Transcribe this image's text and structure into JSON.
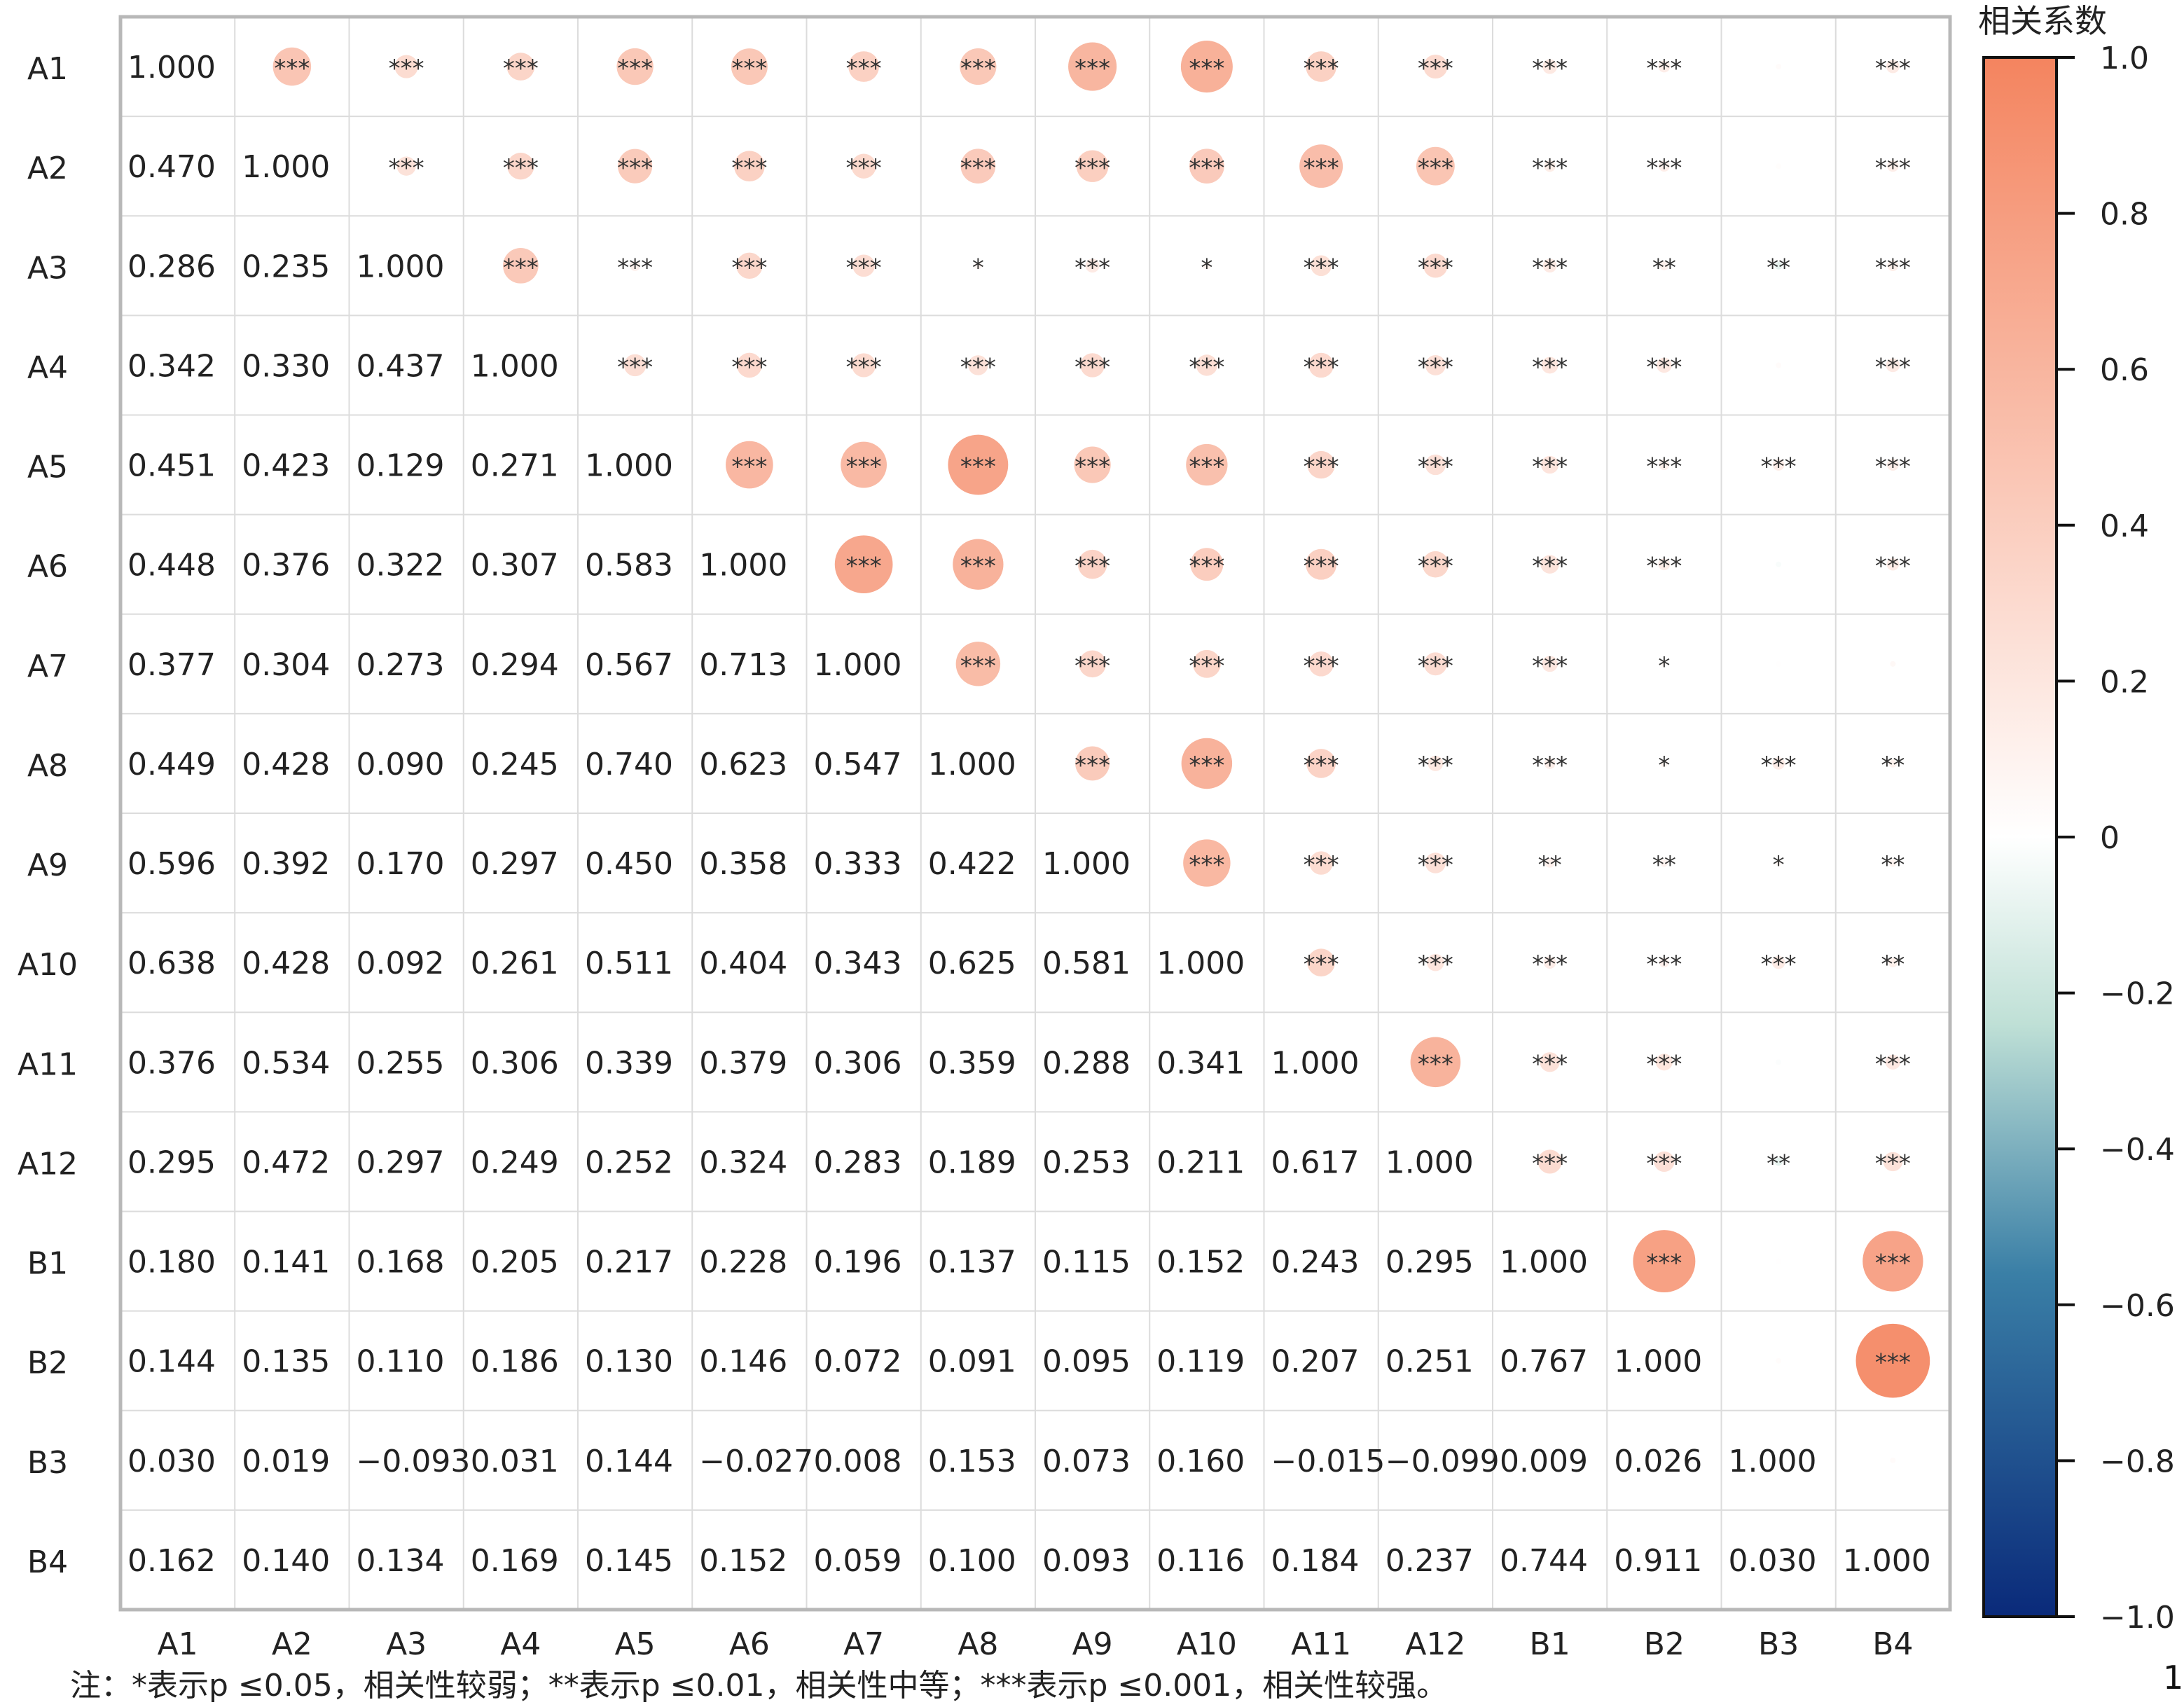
{
  "chart_data": {
    "type": "heatmap",
    "variables": [
      "A1",
      "A2",
      "A3",
      "A4",
      "A5",
      "A6",
      "A7",
      "A8",
      "A9",
      "A10",
      "A11",
      "A12",
      "B1",
      "B2",
      "B3",
      "B4"
    ],
    "lower_triangle_values": [
      [
        "1.000"
      ],
      [
        "0.470",
        "1.000"
      ],
      [
        "0.286",
        "0.235",
        "1.000"
      ],
      [
        "0.342",
        "0.330",
        "0.437",
        "1.000"
      ],
      [
        "0.451",
        "0.423",
        "0.129",
        "0.271",
        "1.000"
      ],
      [
        "0.448",
        "0.376",
        "0.322",
        "0.307",
        "0.583",
        "1.000"
      ],
      [
        "0.377",
        "0.304",
        "0.273",
        "0.294",
        "0.567",
        "0.713",
        "1.000"
      ],
      [
        "0.449",
        "0.428",
        "0.090",
        "0.245",
        "0.740",
        "0.623",
        "0.547",
        "1.000"
      ],
      [
        "0.596",
        "0.392",
        "0.170",
        "0.297",
        "0.450",
        "0.358",
        "0.333",
        "0.422",
        "1.000"
      ],
      [
        "0.638",
        "0.428",
        "0.092",
        "0.261",
        "0.511",
        "0.404",
        "0.343",
        "0.625",
        "0.581",
        "1.000"
      ],
      [
        "0.376",
        "0.534",
        "0.255",
        "0.306",
        "0.339",
        "0.379",
        "0.306",
        "0.359",
        "0.288",
        "0.341",
        "1.000"
      ],
      [
        "0.295",
        "0.472",
        "0.297",
        "0.249",
        "0.252",
        "0.324",
        "0.283",
        "0.189",
        "0.253",
        "0.211",
        "0.617",
        "1.000"
      ],
      [
        "0.180",
        "0.141",
        "0.168",
        "0.205",
        "0.217",
        "0.228",
        "0.196",
        "0.137",
        "0.115",
        "0.152",
        "0.243",
        "0.295",
        "1.000"
      ],
      [
        "0.144",
        "0.135",
        "0.110",
        "0.186",
        "0.130",
        "0.146",
        "0.072",
        "0.091",
        "0.095",
        "0.119",
        "0.207",
        "0.251",
        "0.767",
        "1.000"
      ],
      [
        "0.030",
        "0.019",
        "−0.093",
        "0.031",
        "0.144",
        "−0.027",
        "0.008",
        "0.153",
        "0.073",
        "0.160",
        "−0.015",
        "−0.099",
        "0.009",
        "0.026",
        "1.000"
      ],
      [
        "0.162",
        "0.140",
        "0.134",
        "0.169",
        "0.145",
        "0.152",
        "0.059",
        "0.100",
        "0.093",
        "0.116",
        "0.184",
        "0.237",
        "0.744",
        "0.911",
        "0.030",
        "1.000"
      ]
    ],
    "upper_triangle_significance": [
      [
        "",
        "***",
        "***",
        "***",
        "***",
        "***",
        "***",
        "***",
        "***",
        "***",
        "***",
        "***",
        "***",
        "***",
        "",
        "***"
      ],
      [
        "",
        "",
        "***",
        "***",
        "***",
        "***",
        "***",
        "***",
        "***",
        "***",
        "***",
        "***",
        "***",
        "***",
        "",
        "***"
      ],
      [
        "",
        "",
        "",
        "***",
        "***",
        "***",
        "***",
        "*",
        "***",
        "*",
        "***",
        "***",
        "***",
        "**",
        "**",
        "***"
      ],
      [
        "",
        "",
        "",
        "",
        "***",
        "***",
        "***",
        "***",
        "***",
        "***",
        "***",
        "***",
        "***",
        "***",
        "",
        "***"
      ],
      [
        "",
        "",
        "",
        "",
        "",
        "***",
        "***",
        "***",
        "***",
        "***",
        "***",
        "***",
        "***",
        "***",
        "***",
        "***"
      ],
      [
        "",
        "",
        "",
        "",
        "",
        "",
        "***",
        "***",
        "***",
        "***",
        "***",
        "***",
        "***",
        "***",
        "",
        "***"
      ],
      [
        "",
        "",
        "",
        "",
        "",
        "",
        "",
        "***",
        "***",
        "***",
        "***",
        "***",
        "***",
        "*",
        "",
        ""
      ],
      [
        "",
        "",
        "",
        "",
        "",
        "",
        "",
        "",
        "***",
        "***",
        "***",
        "***",
        "***",
        "*",
        "***",
        "**"
      ],
      [
        "",
        "",
        "",
        "",
        "",
        "",
        "",
        "",
        "",
        "***",
        "***",
        "***",
        "**",
        "**",
        "*",
        "**"
      ],
      [
        "",
        "",
        "",
        "",
        "",
        "",
        "",
        "",
        "",
        "",
        "***",
        "***",
        "***",
        "***",
        "***",
        "**"
      ],
      [
        "",
        "",
        "",
        "",
        "",
        "",
        "",
        "",
        "",
        "",
        "",
        "***",
        "***",
        "***",
        "",
        "***"
      ],
      [
        "",
        "",
        "",
        "",
        "",
        "",
        "",
        "",
        "",
        "",
        "",
        "",
        "***",
        "***",
        "**",
        "***"
      ],
      [
        "",
        "",
        "",
        "",
        "",
        "",
        "",
        "",
        "",
        "",
        "",
        "",
        "",
        "***",
        "",
        "***"
      ],
      [
        "",
        "",
        "",
        "",
        "",
        "",
        "",
        "",
        "",
        "",
        "",
        "",
        "",
        "",
        "",
        "***"
      ],
      [
        "",
        "",
        "",
        "",
        "",
        "",
        "",
        "",
        "",
        "",
        "",
        "",
        "",
        "",
        "",
        ""
      ],
      [
        "",
        "",
        "",
        "",
        "",
        "",
        "",
        "",
        "",
        "",
        "",
        "",
        "",
        "",
        "",
        ""
      ]
    ],
    "colorbar": {
      "title": "相关系数",
      "range": [
        -1.0,
        1.0
      ],
      "ticks": [
        1.0,
        0.8,
        0.6,
        0.4,
        0.2,
        0,
        -0.2,
        -0.4,
        -0.6,
        -0.8,
        -1.0
      ],
      "tick_labels": [
        "1.0",
        "0.8",
        "0.6",
        "0.4",
        "0.2",
        "0",
        "−0.2",
        "−0.4",
        "−0.6",
        "−0.8",
        "−1.0"
      ],
      "color_high": "#f4845f",
      "color_mid": "#ffffff",
      "color_low_1": "#bfe0d6",
      "color_low_2": "#3a7fa6",
      "color_low": "#0a2a7a"
    },
    "grid": true
  },
  "note": "注：*表示p ≤0.05，相关性较弱；**表示p ≤0.01，相关性中等；***表示p ≤0.001，相关性较强。",
  "page_number": "1"
}
